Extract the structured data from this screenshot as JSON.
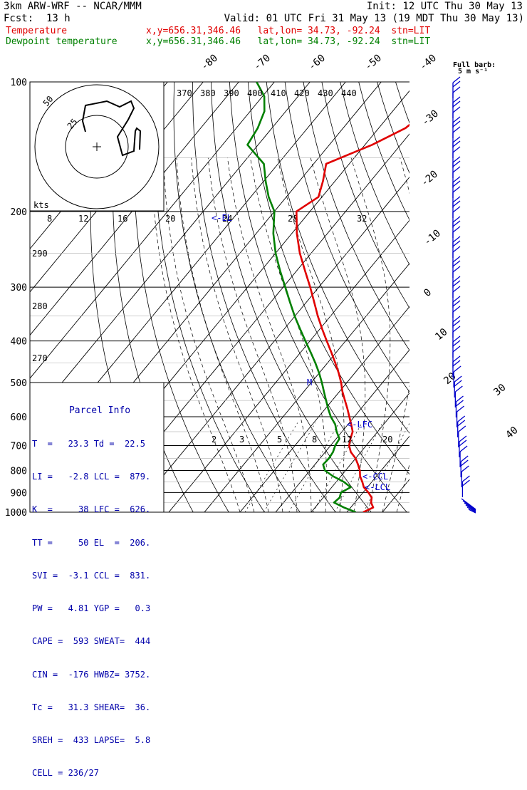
{
  "header": {
    "title": "3km ARW-WRF -- NCAR/MMM",
    "init": "Init: 12 UTC Thu 30 May 13",
    "fcst_label": "Fcst:",
    "fcst_value": "13 h",
    "valid": "Valid: 01 UTC Fri 31 May 13 (19 MDT Thu 30 May 13)",
    "temp_label": "Temperature",
    "temp_info": "x,y=656.31,346.46   lat,lon= 34.73, -92.24  stn=LIT",
    "dew_label": "Dewpoint temperature",
    "dew_info": "x,y=656.31,346.46   lat,lon= 34.73, -92.24  stn=LIT"
  },
  "barb_key": {
    "title": "Full barb:",
    "unit": "5 m s⁻¹"
  },
  "parcel_info": {
    "title": "Parcel Info",
    "rows": [
      "T  =   23.3 Td =  22.5",
      "LI =   -2.8 LCL =  879.",
      "K  =     38 LFC =  626.",
      "TT =     50 EL  =  206.",
      "SVI =  -3.1 CCL =  831.",
      "PW =   4.81 YGP =   0.3",
      "CAPE =  593 SWEAT=  444",
      "CIN =  -176 HWBZ= 3752.",
      "Tc =   31.3 SHEAR=  36.",
      "SREH =  433 LAPSE=  5.8",
      "CELL = 236/27"
    ]
  },
  "annotations": {
    "lfc": "<-LFC",
    "ccl": "<-CCL",
    "lcl": "<-LCL",
    "el": "<-EL",
    "m": "M"
  },
  "colors": {
    "temperature": "#e00000",
    "dewpoint": "#008000",
    "wind": "#0000cc",
    "grid": "#000000"
  },
  "chart_data": {
    "type": "line",
    "chart_kind": "skew-T log-p sounding",
    "y_axis": {
      "label": "pressure (hPa)",
      "scale": "log",
      "ticks": [
        100,
        200,
        300,
        400,
        500,
        600,
        700,
        800,
        900,
        1000
      ]
    },
    "isotherm_labels": [
      "-80",
      "-70",
      "-60",
      "-50",
      "-40",
      "-30",
      "-20",
      "-10",
      "0",
      "10",
      "20",
      "30",
      "40"
    ],
    "theta_labels": [
      "370",
      "380",
      "390",
      "400",
      "410",
      "420",
      "430",
      "440"
    ],
    "theta_e_labels": [
      "290",
      "280",
      "270"
    ],
    "mixing_ratio_labels": [
      "2",
      "3",
      "5",
      "8",
      "12",
      "20"
    ],
    "hodograph": {
      "unit_label": "kts",
      "ring_labels": [
        "50",
        "25"
      ],
      "scale_labels": [
        "8",
        "12",
        "16",
        "20",
        "24",
        "28",
        "32"
      ]
    },
    "series": [
      {
        "name": "Temperature",
        "pressure": [
          1000,
          975,
          950,
          925,
          900,
          875,
          850,
          825,
          800,
          775,
          750,
          725,
          700,
          675,
          650,
          625,
          600,
          575,
          550,
          525,
          500,
          475,
          450,
          425,
          400,
          375,
          350,
          325,
          300,
          275,
          250,
          225,
          200,
          185,
          170,
          155,
          140,
          128,
          117,
          108,
          100
        ],
        "values": [
          24.6,
          26.3,
          24.6,
          23.6,
          21.5,
          19.0,
          17.3,
          15.4,
          14.0,
          12.1,
          10.0,
          7.2,
          5.2,
          4.0,
          3.0,
          0.9,
          -1.4,
          -3.8,
          -6.4,
          -9.1,
          -11.6,
          -14.5,
          -17.8,
          -21.4,
          -25.3,
          -29.4,
          -33.6,
          -37.8,
          -42.4,
          -47.6,
          -53.2,
          -58.6,
          -63.8,
          -61.0,
          -63.4,
          -66.5,
          -58.0,
          -52.5,
          -50.5,
          -51.5,
          -52.5
        ]
      },
      {
        "name": "Dewpoint temperature",
        "pressure": [
          1000,
          975,
          950,
          925,
          900,
          875,
          850,
          825,
          800,
          775,
          750,
          725,
          700,
          675,
          650,
          625,
          600,
          575,
          550,
          525,
          500,
          475,
          450,
          425,
          400,
          375,
          350,
          325,
          300,
          275,
          250,
          225,
          200,
          185,
          170,
          155,
          140,
          128,
          117,
          108,
          100
        ],
        "values": [
          22.5,
          18.1,
          14.2,
          14.6,
          13.8,
          15.3,
          12.1,
          7.8,
          4.2,
          2.3,
          2.5,
          2.2,
          1.3,
          0.9,
          -1.5,
          -3.6,
          -6.6,
          -9.2,
          -11.7,
          -14.3,
          -17.0,
          -20.0,
          -23.4,
          -27.2,
          -31.3,
          -35.6,
          -40.1,
          -44.6,
          -49.4,
          -54.6,
          -60.0,
          -65.2,
          -70.0,
          -75.0,
          -79.5,
          -84.0,
          -93.0,
          -94.0,
          -96.0,
          -99.5,
          -105.0
        ]
      }
    ]
  }
}
